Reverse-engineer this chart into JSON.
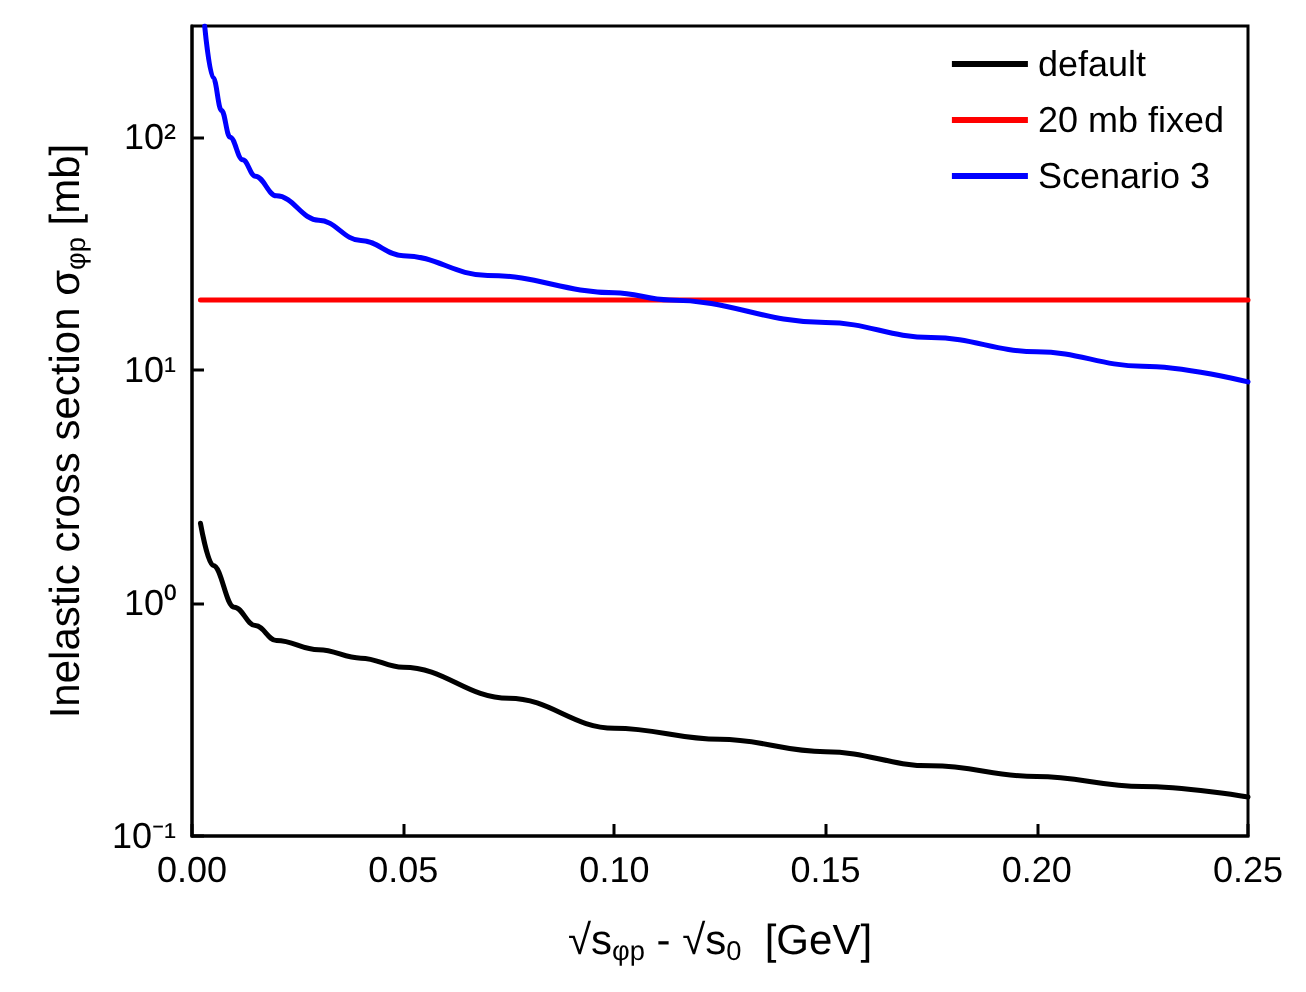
{
  "chart_data": {
    "type": "line",
    "xlabel": "√s$_{φp}$ - √s$_{0}$  [GeV]",
    "ylabel": "Inelastic cross section σ$_{φp}$ [mb]",
    "log": "y",
    "grid": false,
    "legend": "top right",
    "line_style": "solid",
    "marker": "none",
    "xlim": [
      0,
      0.25
    ],
    "xticks": [
      {
        "value": 0,
        "label": "0.00"
      },
      0.05,
      {
        "value": 0.1,
        "label": "0.10"
      },
      0.15,
      {
        "value": 0.2,
        "label": "0.20"
      },
      0.25
    ],
    "ylim": [
      0.1,
      300
    ],
    "yticks": [
      {
        "value": 0.1,
        "label": "10⁻¹"
      },
      {
        "value": 1,
        "label": "10⁰"
      },
      {
        "value": 10,
        "label": "10¹"
      },
      {
        "value": 100,
        "label": "10²"
      }
    ],
    "series": [
      {
        "name": "default",
        "color": "#000000",
        "x": [
          0.002,
          0.005,
          0.01,
          0.015,
          0.02,
          0.03,
          0.04,
          0.05,
          0.075,
          0.1,
          0.125,
          0.15,
          0.175,
          0.2,
          0.225,
          0.25
        ],
        "values": [
          2.2,
          1.45,
          0.96,
          0.8,
          0.69,
          0.63,
          0.58,
          0.53,
          0.39,
          0.29,
          0.26,
          0.23,
          0.2,
          0.18,
          0.163,
          0.147
        ]
      },
      {
        "name": "20 mb fixed",
        "color": "#ff0000",
        "x": [
          0.002,
          0.25
        ],
        "values": [
          20,
          20
        ]
      },
      {
        "name": "Scenario 3",
        "color": "#0000ff",
        "x": [
          0.003,
          0.005,
          0.007,
          0.009,
          0.012,
          0.015,
          0.02,
          0.03,
          0.04,
          0.05,
          0.07,
          0.1,
          0.113,
          0.15,
          0.175,
          0.2,
          0.225,
          0.25
        ],
        "values": [
          300,
          180,
          130,
          100,
          80,
          68,
          56,
          44,
          36,
          31,
          25.5,
          21.5,
          20,
          16,
          13.8,
          12,
          10.4,
          8.9
        ]
      }
    ]
  }
}
